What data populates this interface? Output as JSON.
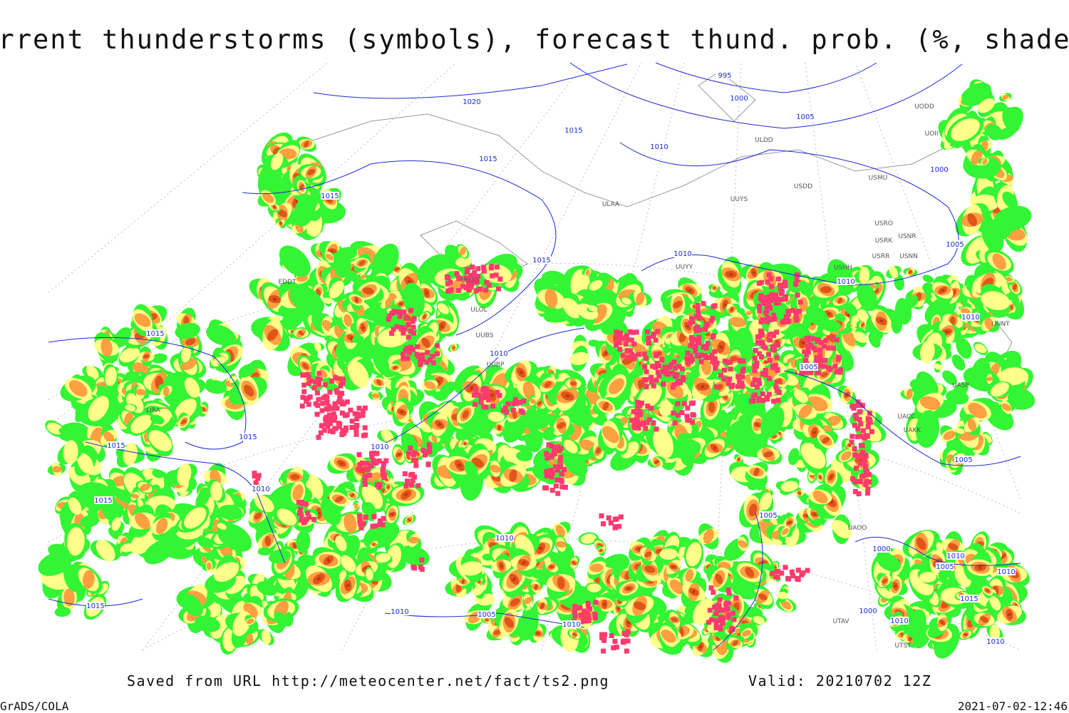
{
  "header": {
    "title": "Current thunderstorms (symbols), forecast thund. prob. (%, shaded)"
  },
  "footer": {
    "source": "Saved from URL http://meteocenter.net/fact/ts2.png",
    "valid": "Valid: 20210702 12Z",
    "software": "GrADS/COLA",
    "timestamp": "2021-07-02-12:46"
  },
  "isobar_labels": [
    "995",
    "1000",
    "1005",
    "1020",
    "1015",
    "1010",
    "1000",
    "1015",
    "1015",
    "1015",
    "1010",
    "1010",
    "1005",
    "1010",
    "1010",
    "1005",
    "1015",
    "1015",
    "1015",
    "1010",
    "1010",
    "1015",
    "1005",
    "1005",
    "1000",
    "1010",
    "1010",
    "1005",
    "1010",
    "1015",
    "1015",
    "1010",
    "1005",
    "1010",
    "1000",
    "1010",
    "1010"
  ],
  "station_labels": [
    "ULDD",
    "UUYS",
    "USDD",
    "USMU",
    "USRO",
    "USRK",
    "USNR",
    "USRR",
    "USNN",
    "USHH",
    "UNNT",
    "UASP",
    "UACC",
    "UAKK",
    "UAOO",
    "UTAV",
    "UTST",
    "ULAA",
    "ULOD",
    "ULOL",
    "UUBS",
    "UUBP",
    "EDDT",
    "LIRA",
    "UUYY",
    "UODD",
    "UOII"
  ]
}
